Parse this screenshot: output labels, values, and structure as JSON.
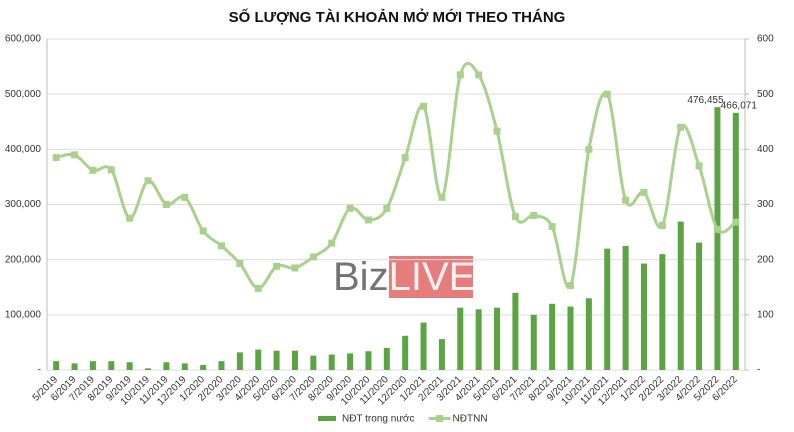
{
  "chart_data": {
    "type": "bar-line",
    "title": "SỐ LƯỢNG TÀI KHOẢN MỞ MỚI THEO THÁNG",
    "watermark": [
      "Biz",
      "LIVE"
    ],
    "categories": [
      "5/2019",
      "6/2019",
      "7/2019",
      "8/2019",
      "9/2019",
      "10/2019",
      "11/2019",
      "12/2019",
      "1/2020",
      "2/2020",
      "3/2020",
      "4/2020",
      "5/2020",
      "6/2020",
      "7/2020",
      "8/2020",
      "9/2020",
      "10/2020",
      "11/2020",
      "12/2020",
      "1/2021",
      "2/2021",
      "3/2021",
      "4/2021",
      "5/2021",
      "6/2021",
      "7/2021",
      "8/2021",
      "9/2021",
      "10/2021",
      "11/2021",
      "12/2021",
      "1/2022",
      "2/2022",
      "3/2022",
      "4/2022",
      "5/2022",
      "6/2022"
    ],
    "series": [
      {
        "name": "NĐT trong nước",
        "type": "bar",
        "axis": "y",
        "color": "#5ba443",
        "values": [
          16000,
          12000,
          16000,
          16000,
          14000,
          3000,
          14000,
          12000,
          9000,
          16000,
          32000,
          37000,
          35000,
          35000,
          26000,
          28000,
          30000,
          34000,
          40000,
          62000,
          86000,
          56000,
          113000,
          110000,
          113000,
          140000,
          100000,
          120000,
          115000,
          130000,
          220000,
          225000,
          193000,
          210000,
          269000,
          231000,
          476455,
          466071
        ],
        "value_labels": [
          null,
          null,
          null,
          null,
          null,
          null,
          null,
          null,
          null,
          null,
          null,
          null,
          null,
          null,
          null,
          null,
          null,
          null,
          null,
          null,
          null,
          null,
          null,
          null,
          null,
          null,
          null,
          null,
          null,
          null,
          null,
          null,
          null,
          null,
          null,
          null,
          "476,455",
          "466,071"
        ]
      },
      {
        "name": "NĐTNN",
        "type": "line",
        "axis": "y2",
        "color": "#a9d18e",
        "values": [
          385,
          390,
          362,
          363,
          275,
          343,
          300,
          313,
          252,
          225,
          193,
          148,
          188,
          185,
          205,
          230,
          293,
          272,
          293,
          385,
          478,
          313,
          535,
          535,
          433,
          278,
          280,
          260,
          153,
          400,
          500,
          308,
          322,
          262,
          440,
          370,
          255,
          268
        ]
      }
    ],
    "ylim": [
      0,
      600000
    ],
    "yticks": [
      {
        "value": 0,
        "label": "-"
      },
      {
        "value": 100000,
        "label": "100,000"
      },
      {
        "value": 200000,
        "label": "200,000"
      },
      {
        "value": 300000,
        "label": "300,000"
      },
      {
        "value": 400000,
        "label": "400,000"
      },
      {
        "value": 500000,
        "label": "500,000"
      },
      {
        "value": 600000,
        "label": "600,000"
      }
    ],
    "y2lim": [
      0,
      600
    ],
    "y2ticks": [
      {
        "value": 0,
        "label": "-"
      },
      100,
      200,
      300,
      400,
      500,
      600
    ],
    "grid": true,
    "legend": "bottom"
  }
}
